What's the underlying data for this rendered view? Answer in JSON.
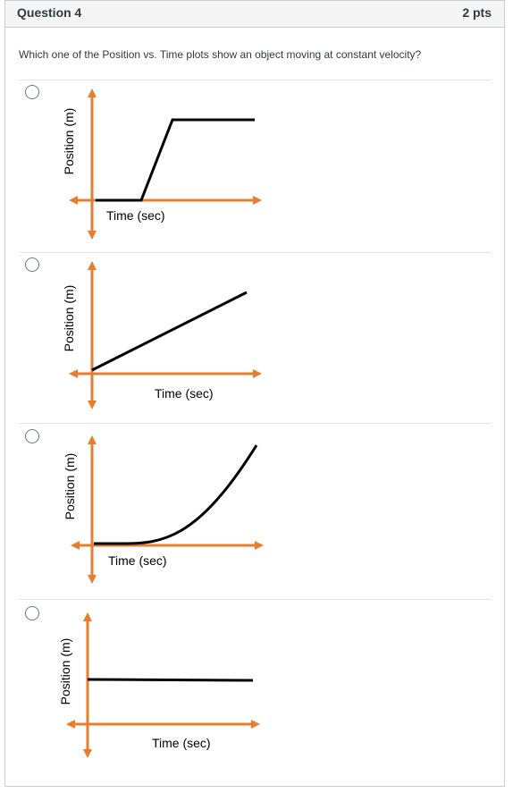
{
  "question": {
    "title": "Question 4",
    "points": "2 pts",
    "prompt": "Which one of the Position vs. Time plots show an object moving at constant velocity?"
  },
  "colors": {
    "axis": "#e87d2e",
    "curve": "#000000"
  },
  "options": [
    {
      "y_label": "Position (m)",
      "x_label": "Time (sec)",
      "curve": "rest-then-constant-velocity-then-rest"
    },
    {
      "y_label": "Position (m)",
      "x_label": "Time (sec)",
      "curve": "straight-line-increasing"
    },
    {
      "y_label": "Position (m)",
      "x_label": "Time (sec)",
      "curve": "curve-increasing-slope"
    },
    {
      "y_label": "Position (m)",
      "x_label": "Time (sec)",
      "curve": "horizontal-line"
    }
  ]
}
